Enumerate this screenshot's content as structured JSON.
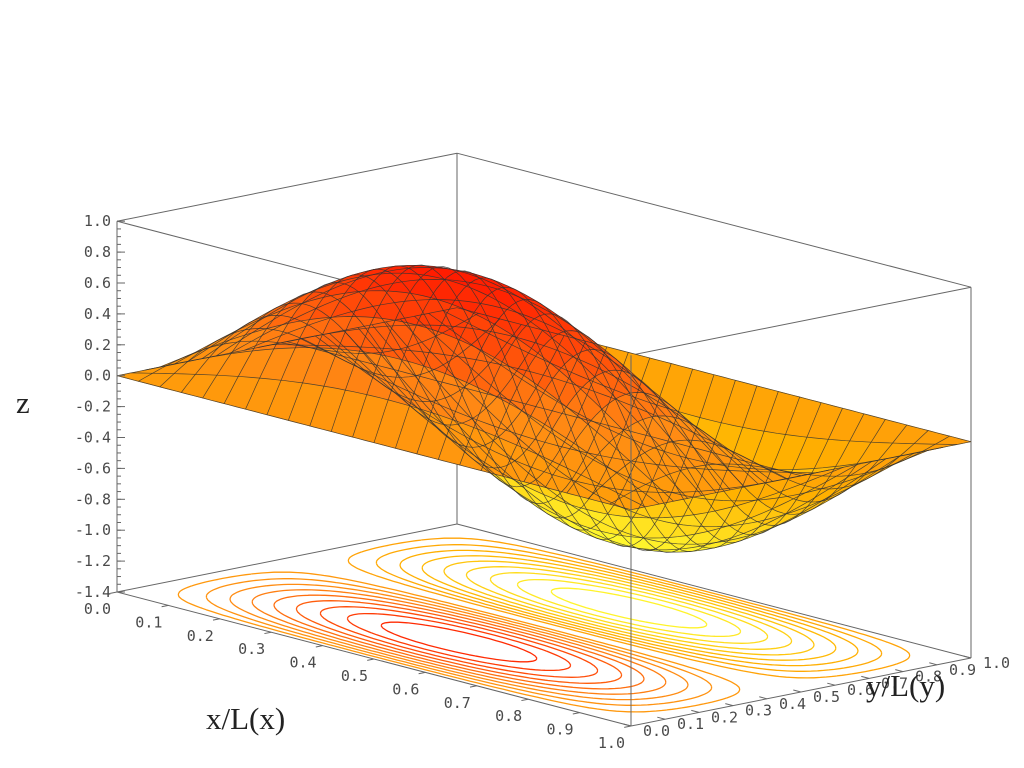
{
  "chart_data": {
    "type": "surface3d",
    "function": "z = sin(pi * x/L(x)) * sin(2 * pi * y/L(y))",
    "xlabel": "x/L(x)",
    "ylabel": "y/L(y)",
    "zlabel": "z",
    "xlim": [
      0.0,
      1.0
    ],
    "ylim": [
      0.0,
      1.0
    ],
    "zlim": [
      -1.4,
      1.0
    ],
    "x_ticks": [
      "0.0",
      "0.1",
      "0.2",
      "0.3",
      "0.4",
      "0.5",
      "0.6",
      "0.7",
      "0.8",
      "0.9",
      "1.0"
    ],
    "y_ticks": [
      "0.0",
      "0.1",
      "0.2",
      "0.3",
      "0.4",
      "0.5",
      "0.6",
      "0.7",
      "0.8",
      "0.9",
      "1.0"
    ],
    "z_ticks": [
      "1.0",
      "0.8",
      "0.6",
      "0.4",
      "0.2",
      "0.0",
      "-0.2",
      "-0.4",
      "-0.6",
      "-0.8",
      "-1.0",
      "-1.2",
      "-1.4"
    ],
    "z_min_value": -1.0,
    "z_max_value": 1.0,
    "contour_levels": [
      -0.9,
      -0.8,
      -0.7,
      -0.6,
      -0.5,
      -0.4,
      -0.3,
      -0.2,
      -0.1,
      0.1,
      0.2,
      0.3,
      0.4,
      0.5,
      0.6,
      0.7,
      0.8,
      0.9
    ],
    "colormap": [
      "#ffff33",
      "#ffb100",
      "#ff8a14",
      "#ff1a00"
    ],
    "grid": true
  }
}
